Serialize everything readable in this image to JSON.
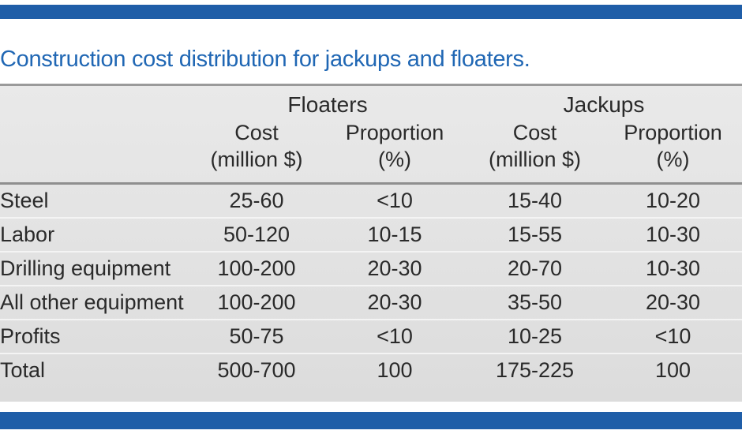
{
  "title": "Construction cost distribution for jackups and floaters.",
  "groups": [
    "Floaters",
    "Jackups"
  ],
  "subheaders": [
    {
      "line1": "Cost",
      "line2": "(million $)"
    },
    {
      "line1": "Proportion",
      "line2": "(%)"
    },
    {
      "line1": "Cost",
      "line2": "(million $)"
    },
    {
      "line1": "Proportion",
      "line2": "(%)"
    }
  ],
  "rows": [
    {
      "label": "Steel",
      "values": [
        "25-60",
        "<10",
        "15-40",
        "10-20"
      ]
    },
    {
      "label": "Labor",
      "values": [
        "50-120",
        "10-15",
        "15-55",
        "10-30"
      ]
    },
    {
      "label": "Drilling equipment",
      "values": [
        "100-200",
        "20-30",
        "20-70",
        "10-30"
      ]
    },
    {
      "label": "All other equipment",
      "values": [
        "100-200",
        "20-30",
        "35-50",
        "20-30"
      ]
    },
    {
      "label": "Profits",
      "values": [
        "50-75",
        "<10",
        "10-25",
        "<10"
      ]
    },
    {
      "label": "Total",
      "values": [
        "500-700",
        "100",
        "175-225",
        "100"
      ]
    }
  ]
}
